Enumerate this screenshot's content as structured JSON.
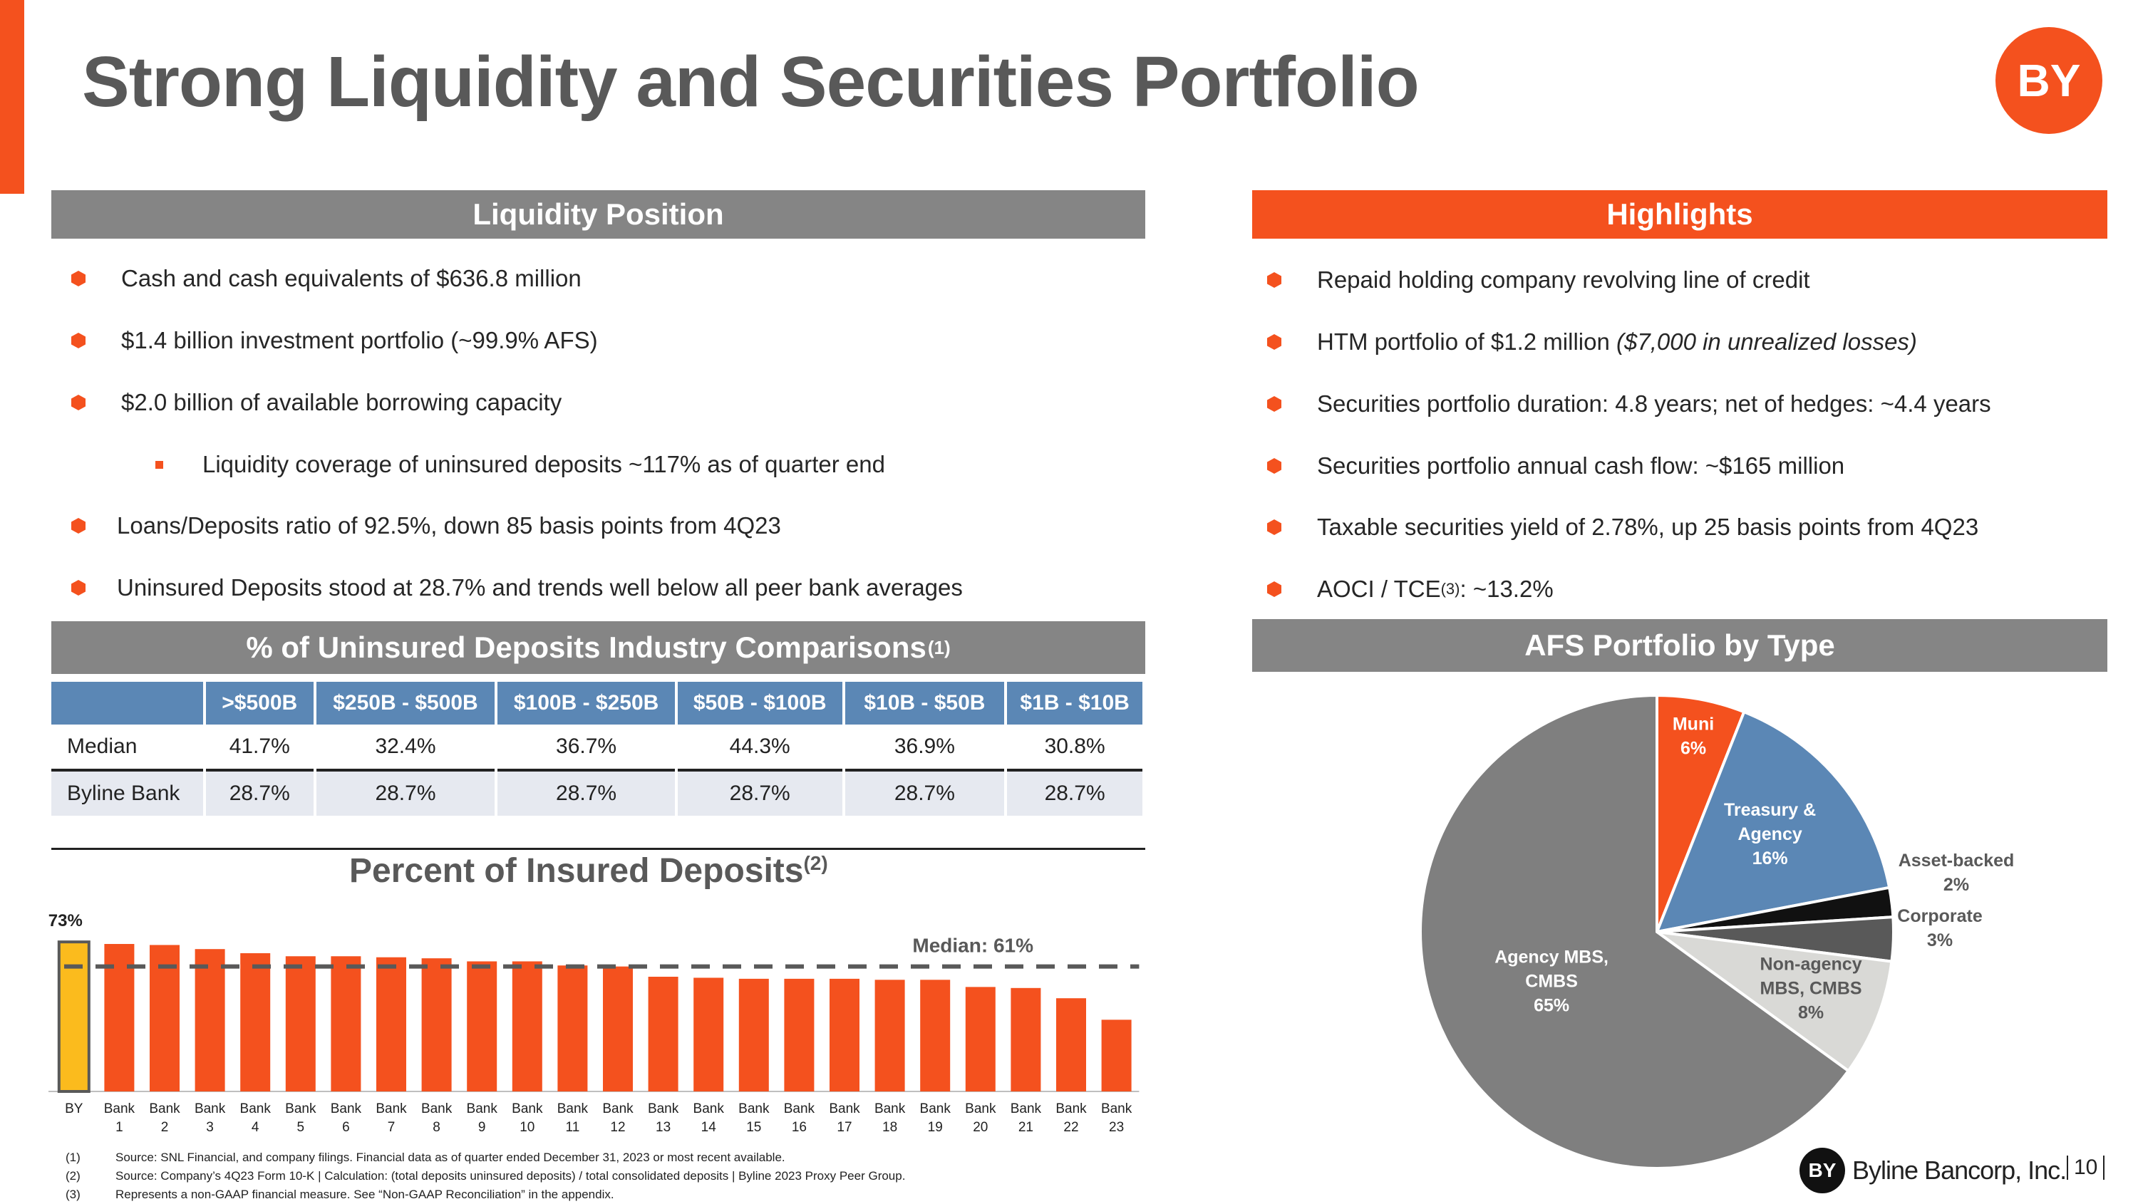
{
  "title": "Strong Liquidity and Securities Portfolio",
  "brand": {
    "logo_text": "BY",
    "footer_name": "Byline Bancorp, Inc.",
    "accent": "#f4511e"
  },
  "page_number": "10",
  "liquidity": {
    "header": "Liquidity Position",
    "bullets": [
      "Cash and cash equivalents of $636.8 million",
      "$1.4 billion investment portfolio (~99.9% AFS)",
      "$2.0 billion of available borrowing capacity",
      "Liquidity coverage of uninsured deposits ~117% as of quarter end",
      "Loans/Deposits ratio of 92.5%, down 85 basis points from 4Q23",
      "Uninsured Deposits stood at 28.7% and trends well below all peer bank averages"
    ]
  },
  "highlights": {
    "header": "Highlights",
    "b1": "Repaid holding company revolving line of credit",
    "b2_main": "HTM portfolio of $1.2 million ",
    "b2_italic": "($7,000 in unrealized losses)",
    "b3": "Securities portfolio duration: 4.8 years; net of hedges: ~4.4 years",
    "b4": "Securities portfolio annual cash flow: ~$165 million",
    "b5": "Taxable securities yield of 2.78%, up 25 basis points from 4Q23",
    "b6_pre": "AOCI / TCE",
    "b6_sup": "(3)",
    "b6_post": ": ~13.2%"
  },
  "uninsured": {
    "header": "% of Uninsured Deposits Industry Comparisons",
    "header_sup": "(1)",
    "columns": [
      ">$500B",
      "$250B - $500B",
      "$100B - $250B",
      "$50B - $100B",
      "$10B - $50B",
      "$1B - $10B"
    ],
    "rows": [
      {
        "label": "Median",
        "values": [
          "41.7%",
          "32.4%",
          "36.7%",
          "44.3%",
          "36.9%",
          "30.8%"
        ]
      },
      {
        "label": "Byline Bank",
        "values": [
          "28.7%",
          "28.7%",
          "28.7%",
          "28.7%",
          "28.7%",
          "28.7%"
        ]
      }
    ]
  },
  "afs": {
    "header": "AFS Portfolio by Type"
  },
  "chart_data": [
    {
      "type": "bar",
      "title": "Percent of Insured Deposits",
      "title_sup": "(2)",
      "categories": [
        "BY",
        "Bank 1",
        "Bank 2",
        "Bank 3",
        "Bank 4",
        "Bank 5",
        "Bank 6",
        "Bank 7",
        "Bank 8",
        "Bank 9",
        "Bank 10",
        "Bank 11",
        "Bank 12",
        "Bank 13",
        "Bank 14",
        "Bank 15",
        "Bank 16",
        "Bank 17",
        "Bank 18",
        "Bank 19",
        "Bank 20",
        "Bank 21",
        "Bank 22",
        "Bank 23"
      ],
      "values": [
        73,
        72,
        71.5,
        69.5,
        67.5,
        66,
        66,
        65.5,
        65,
        63.5,
        63.5,
        61.5,
        61,
        56,
        55.5,
        55,
        55,
        55,
        54.5,
        54.5,
        51,
        50.5,
        45.5,
        35
      ],
      "ylim": [
        0,
        80
      ],
      "data_labels": {
        "BY": "73%"
      },
      "reference_line": {
        "label": "Median: 61%",
        "value": 61
      },
      "colors": {
        "BY": "#fbbb1d",
        "peers": "#f4511e",
        "median_line": "#595959"
      }
    },
    {
      "type": "pie",
      "title": "",
      "slices": [
        {
          "label": "Muni",
          "value": 6,
          "display": "6%",
          "color": "#f4511e"
        },
        {
          "label": "Treasury & Agency",
          "value": 16,
          "display": "16%",
          "color": "#5b87b5"
        },
        {
          "label": "Asset-backed",
          "value": 2,
          "display": "2%",
          "color": "#111111"
        },
        {
          "label": "Corporate",
          "value": 3,
          "display": "3%",
          "color": "#595959"
        },
        {
          "label": "Non-agency MBS, CMBS",
          "value": 8,
          "display": "8%",
          "color": "#d9d9d6"
        },
        {
          "label": "Agency MBS, CMBS",
          "value": 65,
          "display": "65%",
          "color": "#7f7f7f"
        }
      ]
    }
  ],
  "footnotes": [
    {
      "num": "(1)",
      "text": "Source: SNL Financial, and company filings. Financial data as of quarter ended December 31, 2023 or most recent available."
    },
    {
      "num": "(2)",
      "text": "Source: Company’s 4Q23 Form 10-K | Calculation: (total deposits uninsured deposits) / total consolidated deposits | Byline 2023 Proxy Peer Group."
    },
    {
      "num": "(3)",
      "text": "Represents a non-GAAP financial measure.  See “Non-GAAP Reconciliation” in the appendix."
    }
  ]
}
